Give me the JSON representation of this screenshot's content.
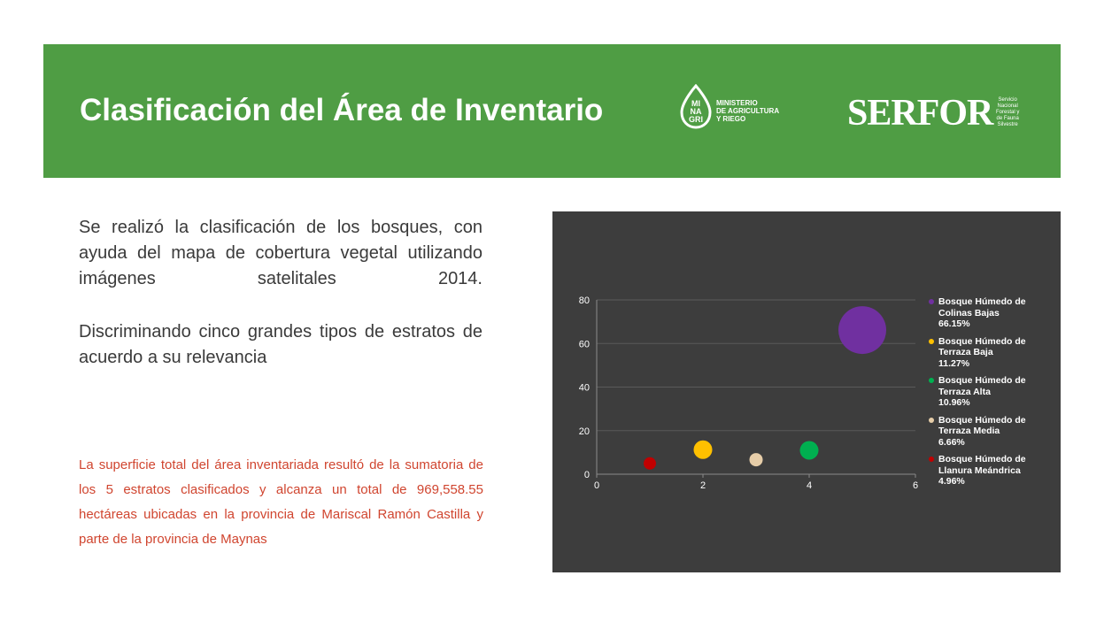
{
  "header": {
    "title": "Clasificación del Área de Inventario",
    "minagri_logo": {
      "mark": "MI\nNA\nGRI",
      "text": "MINISTERIO\nDE AGRICULTURA\nY RIEGO"
    },
    "serfor_logo": {
      "wordmark": "SERFOR",
      "subtitle": "Servicio\nNacional\nForestal y\nde Fauna\nSilvestre"
    },
    "bar_color": "#4f9d44"
  },
  "body": {
    "paragraph_1": "Se realizó la clasificación de los bosques, con ayuda del mapa de cobertura vegetal utilizando imágenes satelitales 2014.",
    "paragraph_2": "Discriminando cinco grandes tipos de estratos de acuerdo a su relevancia",
    "note": "La superficie total del área inventariada resultó de la sumatoria de los 5 estratos clasificados y alcanza un total de 969,558.55 hectáreas ubicadas en la provincia de Mariscal Ramón Castilla y parte de la provincia de Maynas",
    "note_color": "#d0452f"
  },
  "chart_data": {
    "type": "scatter",
    "title": "",
    "xlabel": "",
    "ylabel": "",
    "xlim": [
      0,
      6
    ],
    "ylim": [
      0,
      80
    ],
    "x_ticks": [
      "0",
      "2",
      "4",
      "6"
    ],
    "y_ticks": [
      "0",
      "20",
      "40",
      "60",
      "80"
    ],
    "grid": true,
    "legend_position": "right",
    "series": [
      {
        "name": "Bosque Húmedo de\nColinas Bajas",
        "pct": "66.15%",
        "x": 5,
        "y": 66.15,
        "color": "#7030a0"
      },
      {
        "name": "Bosque Húmedo de\nTerraza Baja",
        "pct": "11.27%",
        "x": 2,
        "y": 11.27,
        "color": "#ffc000"
      },
      {
        "name": "Bosque Húmedo de\nTerraza Alta",
        "pct": "10.96%",
        "x": 4,
        "y": 10.96,
        "color": "#00b050"
      },
      {
        "name": "Bosque Húmedo de\nTerraza Media",
        "pct": "6.66%",
        "x": 3,
        "y": 6.66,
        "color": "#e6cda8"
      },
      {
        "name": "Bosque Húmedo de\nLlanura Meándrica",
        "pct": "4.96%",
        "x": 1,
        "y": 4.96,
        "color": "#c00000"
      }
    ]
  }
}
